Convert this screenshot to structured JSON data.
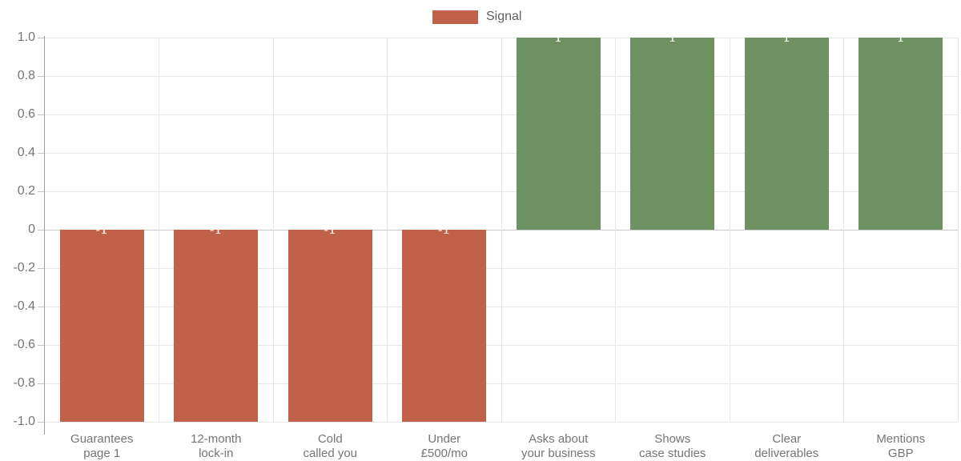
{
  "legend": {
    "label": "Signal",
    "swatch_color": "#c2614a"
  },
  "chart_data": {
    "type": "bar",
    "title": "",
    "xlabel": "",
    "ylabel": "",
    "legend_position": "top",
    "grid": true,
    "ylim": [
      -1.0,
      1.0
    ],
    "y_ticks": [
      "1.0",
      "0.8",
      "0.6",
      "0.4",
      "0.2",
      "0",
      "-0.2",
      "-0.4",
      "-0.6",
      "-0.8",
      "-1.0"
    ],
    "categories": [
      "Guarantees page 1",
      "12-month lock-in",
      "Cold called you",
      "Under £500/mo",
      "Asks about your business",
      "Shows case studies",
      "Clear deliverables",
      "Mentions GBP"
    ],
    "category_lines": [
      [
        "Guarantees",
        "page 1"
      ],
      [
        "12-month",
        "lock-in"
      ],
      [
        "Cold",
        "called you"
      ],
      [
        "Under",
        "£500/mo"
      ],
      [
        "Asks about",
        "your business"
      ],
      [
        "Shows",
        "case studies"
      ],
      [
        "Clear",
        "deliverables"
      ],
      [
        "Mentions",
        "GBP"
      ]
    ],
    "series": [
      {
        "name": "Signal",
        "values": [
          -1,
          -1,
          -1,
          -1,
          1,
          1,
          1,
          1
        ]
      }
    ],
    "bar_value_labels": [
      "-1",
      "-1",
      "-1",
      "-1",
      "1",
      "1",
      "1",
      "1"
    ],
    "colors": {
      "negative": "#c2614a",
      "positive": "#6e9161"
    }
  }
}
